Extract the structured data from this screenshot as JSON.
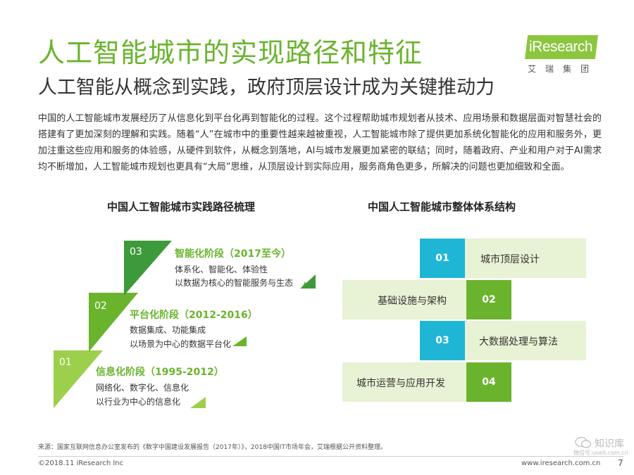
{
  "header": {
    "title": "人工智能城市的实现路径和特征",
    "subtitle": "人工智能从概念到实践，政府顶层设计成为关键推动力"
  },
  "logo": {
    "brand": "iResearch",
    "brand_cn": "艾瑞集团",
    "color": "#8cc63f"
  },
  "intro": "中国的人工智能城市发展经历了从信息化到平台化再到智能化的过程。这个过程帮助城市规划者从技术、应用场景和数据层面对智慧社会的搭建有了更加深刻的理解和实践。随着“人”在城市中的重要性越来越被重视，人工智能城市除了提供更加系统化智能化的应用和服务外，更加注重这些应用和服务的体验感，从硬件到软件，从概念到落地，AI与城市发展更加紧密的联结；同时，随着政府、产业和用户对于AI需求均不断增加，人工智能城市规划也更具有“大局”思维，从顶层设计到实际应用，服务商角色更多，所解决的问题也更加细致和全面。",
  "left_section": {
    "title": "中国人工智能城市实践路径梳理",
    "stages": [
      {
        "num": "03",
        "title": "智能化阶段（2017至今）",
        "line1": "体系化、智能化、体验性",
        "line2": "以数据为核心的智能服务与生态",
        "color": "#3d9a3a"
      },
      {
        "num": "02",
        "title": "平台化阶段（2012-2016）",
        "line1": "数据集成、功能集成",
        "line2": "以场景为中心的数据平台化",
        "color": "#6ab42d"
      },
      {
        "num": "01",
        "title": "信息化阶段（1995-2012）",
        "line1": "网络化、数字化、信息化",
        "line2": "以行业为中心的信息化",
        "color": "#9ccf4b"
      }
    ]
  },
  "right_section": {
    "title": "中国人工智能城市整体体系结构",
    "rows": [
      {
        "num": "01",
        "label": "城市顶层设计",
        "num_color": "#1fb6d6"
      },
      {
        "num": "02",
        "label": "基础设施与架构",
        "num_color": "#6ab42d"
      },
      {
        "num": "03",
        "label": "大数据处理与算法",
        "num_color": "#1fb6d6"
      },
      {
        "num": "04",
        "label": "城市运营与应用开发",
        "num_color": "#6ab42d"
      }
    ]
  },
  "footer": {
    "source": "来源：国家互联网信息办公室发布的《数字中国建设发展报告（2017年）》，2018中国IT市场年会，艾瑞根据公开资料整理。",
    "copyright": "©2018.11 iResearch Inc",
    "site": "www.iresearch.com.cn",
    "page": "7",
    "watermark_main": "知识库",
    "watermark_sub": "微信号:useit.com.cn"
  }
}
